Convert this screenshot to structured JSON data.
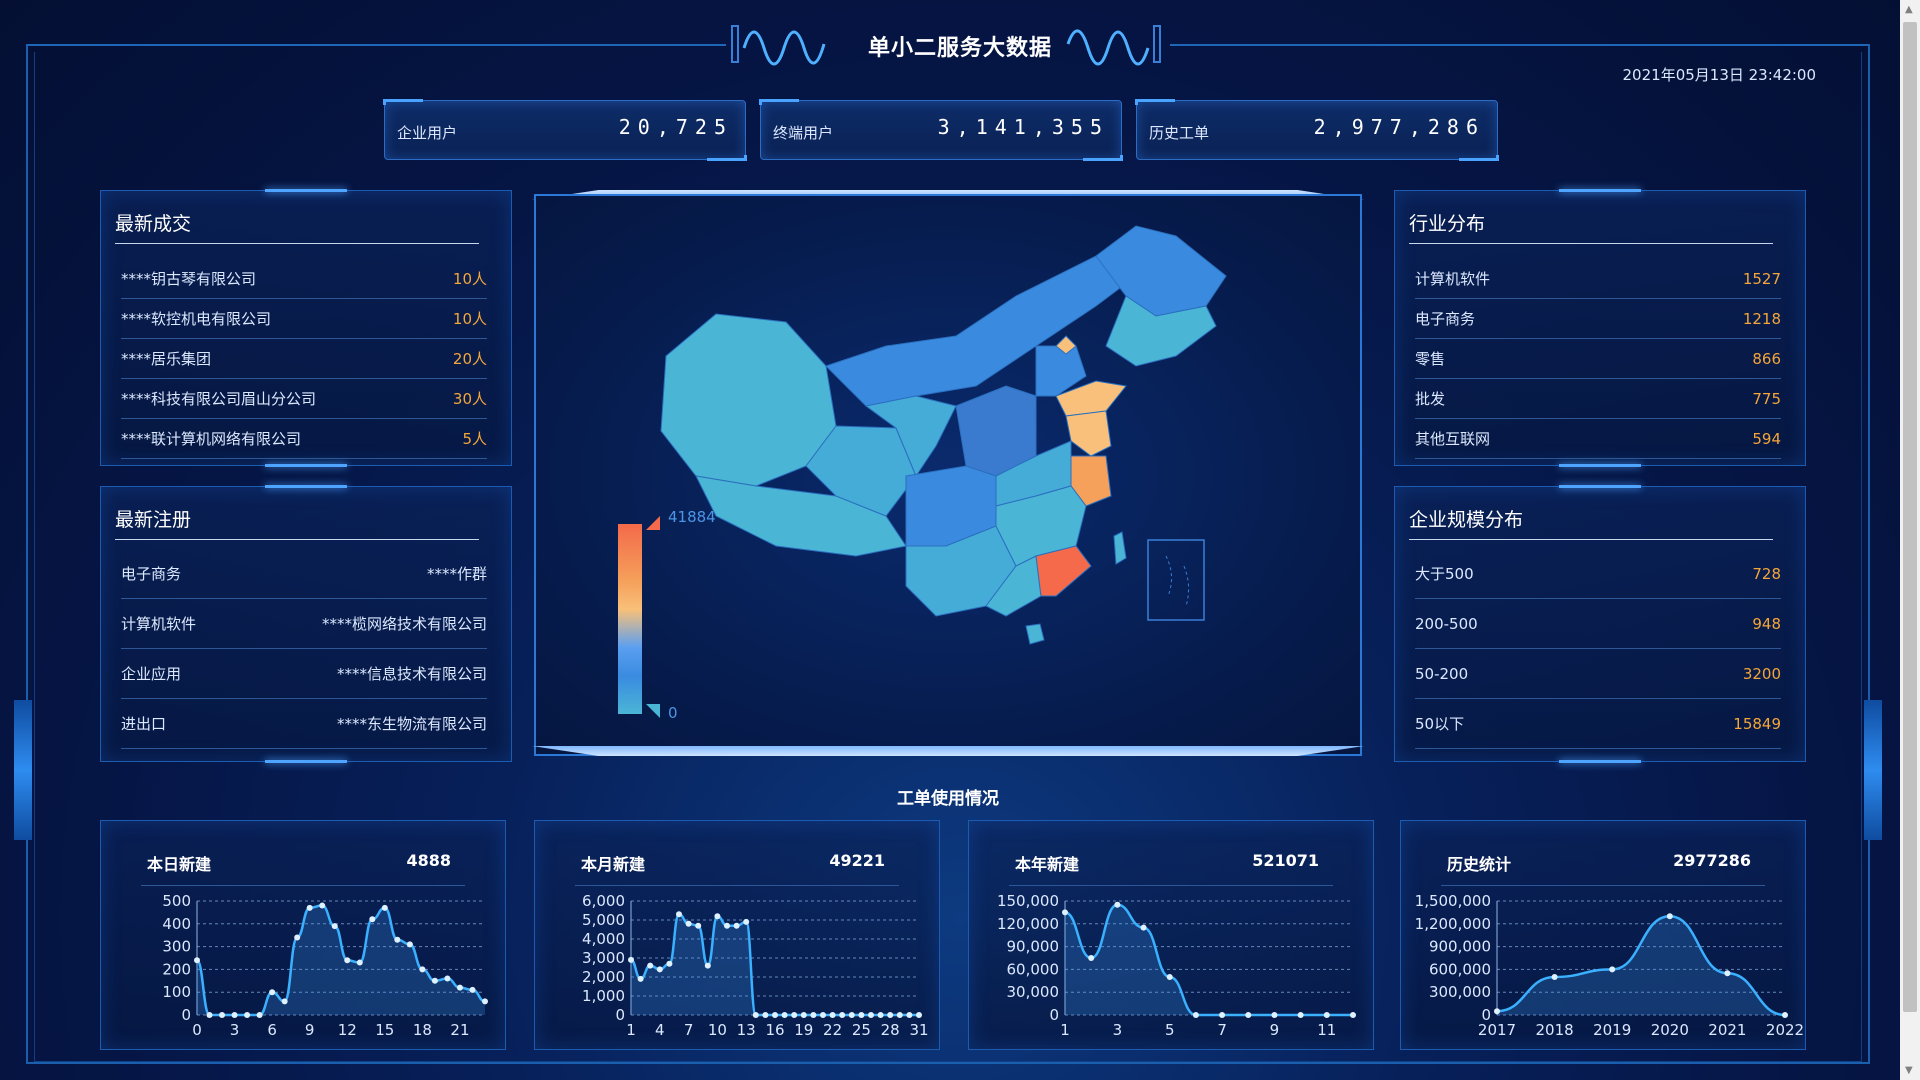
{
  "header": {
    "title": "单小二服务大数据",
    "datetime": "2021年05月13日 23:42:00"
  },
  "stats": [
    {
      "label": "企业用户",
      "value": "20,725"
    },
    {
      "label": "终端用户",
      "value": "3,141,355"
    },
    {
      "label": "历史工单",
      "value": "2,977,286"
    }
  ],
  "latest_deals": {
    "title": "最新成交",
    "rows": [
      {
        "name": "****钥古琴有限公司",
        "value": "10人"
      },
      {
        "name": "****软控机电有限公司",
        "value": "10人"
      },
      {
        "name": "****居乐集团",
        "value": "20人"
      },
      {
        "name": "****科技有限公司眉山分公司",
        "value": "30人"
      },
      {
        "name": "****联计算机网络有限公司",
        "value": "5人"
      }
    ]
  },
  "latest_registrations": {
    "title": "最新注册",
    "rows": [
      {
        "name": "电子商务",
        "value": "****作群"
      },
      {
        "name": "计算机软件",
        "value": "****榄网络技术有限公司"
      },
      {
        "name": "企业应用",
        "value": "****信息技术有限公司"
      },
      {
        "name": "进出口",
        "value": "****东生物流有限公司"
      }
    ]
  },
  "industry": {
    "title": "行业分布",
    "rows": [
      {
        "name": "计算机软件",
        "value": "1527"
      },
      {
        "name": "电子商务",
        "value": "1218"
      },
      {
        "name": "零售",
        "value": "866"
      },
      {
        "name": "批发",
        "value": "775"
      },
      {
        "name": "其他互联网",
        "value": "594"
      }
    ]
  },
  "company_size": {
    "title": "企业规模分布",
    "rows": [
      {
        "name": "大于500",
        "value": "728"
      },
      {
        "name": "200-500",
        "value": "948"
      },
      {
        "name": "50-200",
        "value": "3200"
      },
      {
        "name": "50以下",
        "value": "15849"
      }
    ]
  },
  "map": {
    "legend_max": "41884",
    "legend_min": "0",
    "colors": {
      "high": "#f46a4a",
      "mid": "#f8c07a",
      "low": "#4bb5d6",
      "base": "#3a8be0"
    }
  },
  "usage": {
    "title": "工单使用情况"
  },
  "chart_data": [
    {
      "type": "line",
      "title": "本日新建",
      "total": "4888",
      "x": [
        0,
        1,
        2,
        3,
        4,
        5,
        6,
        7,
        8,
        9,
        10,
        11,
        12,
        13,
        14,
        15,
        16,
        17,
        18,
        19,
        20,
        21,
        22,
        23
      ],
      "x_ticks": [
        "0",
        "3",
        "6",
        "9",
        "12",
        "15",
        "18",
        "21"
      ],
      "x_tick_values": [
        0,
        3,
        6,
        9,
        12,
        15,
        18,
        21
      ],
      "y_ticks": [
        "500",
        "400",
        "300",
        "200",
        "100",
        "0"
      ],
      "y_tick_values": [
        500,
        400,
        300,
        200,
        100,
        0
      ],
      "ylim": [
        0,
        500
      ],
      "values": [
        240,
        0,
        0,
        0,
        0,
        0,
        100,
        60,
        340,
        470,
        480,
        390,
        240,
        230,
        420,
        470,
        330,
        310,
        200,
        150,
        160,
        120,
        110,
        60
      ]
    },
    {
      "type": "line",
      "title": "本月新建",
      "total": "49221",
      "x": [
        1,
        2,
        3,
        4,
        5,
        6,
        7,
        8,
        9,
        10,
        11,
        12,
        13,
        14,
        15,
        16,
        17,
        18,
        19,
        20,
        21,
        22,
        23,
        24,
        25,
        26,
        27,
        28,
        29,
        30,
        31
      ],
      "x_ticks": [
        "1",
        "4",
        "7",
        "10",
        "13",
        "16",
        "19",
        "22",
        "25",
        "28",
        "31"
      ],
      "x_tick_values": [
        1,
        4,
        7,
        10,
        13,
        16,
        19,
        22,
        25,
        28,
        31
      ],
      "y_ticks": [
        "6,000",
        "5,000",
        "4,000",
        "3,000",
        "2,000",
        "1,000",
        "0"
      ],
      "y_tick_values": [
        6000,
        5000,
        4000,
        3000,
        2000,
        1000,
        0
      ],
      "ylim": [
        0,
        6000
      ],
      "values": [
        2900,
        1900,
        2600,
        2400,
        2700,
        5300,
        4800,
        4700,
        2600,
        5200,
        4700,
        4700,
        4900,
        0,
        0,
        0,
        0,
        0,
        0,
        0,
        0,
        0,
        0,
        0,
        0,
        0,
        0,
        0,
        0,
        0,
        0
      ]
    },
    {
      "type": "line",
      "title": "本年新建",
      "total": "521071",
      "x": [
        1,
        2,
        3,
        4,
        5,
        6,
        7,
        8,
        9,
        10,
        11,
        12
      ],
      "x_ticks": [
        "1",
        "3",
        "5",
        "7",
        "9",
        "11"
      ],
      "x_tick_values": [
        1,
        3,
        5,
        7,
        9,
        11
      ],
      "y_ticks": [
        "150,000",
        "120,000",
        "90,000",
        "60,000",
        "30,000",
        "0"
      ],
      "y_tick_values": [
        150000,
        120000,
        90000,
        60000,
        30000,
        0
      ],
      "ylim": [
        0,
        150000
      ],
      "values": [
        135000,
        75000,
        145000,
        115000,
        50000,
        0,
        0,
        0,
        0,
        0,
        0,
        0
      ]
    },
    {
      "type": "line",
      "title": "历史统计",
      "total": "2977286",
      "x": [
        2017,
        2018,
        2019,
        2020,
        2021,
        2022
      ],
      "x_ticks": [
        "2017",
        "2018",
        "2019",
        "2020",
        "2021",
        "2022"
      ],
      "x_tick_values": [
        2017,
        2018,
        2019,
        2020,
        2021,
        2022
      ],
      "y_ticks": [
        "1,500,000",
        "1,200,000",
        "900,000",
        "600,000",
        "300,000",
        "0"
      ],
      "y_tick_values": [
        1500000,
        1200000,
        900000,
        600000,
        300000,
        0
      ],
      "ylim": [
        0,
        1500000
      ],
      "values": [
        50000,
        500000,
        600000,
        1300000,
        550000,
        0
      ]
    }
  ]
}
